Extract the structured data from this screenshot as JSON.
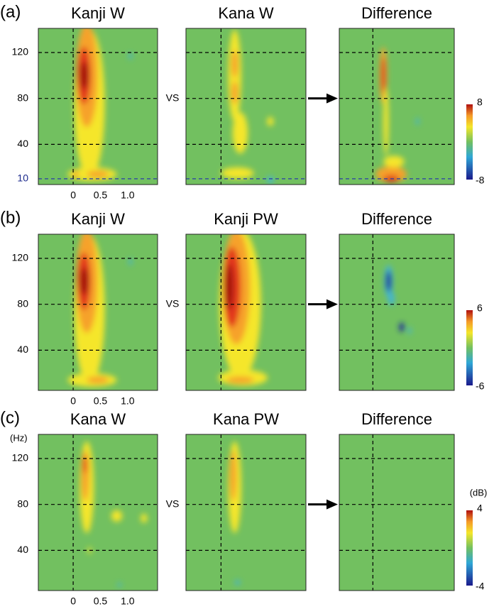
{
  "rows": [
    {
      "label": "(a)",
      "titles": [
        "Kanji W",
        "Kana W",
        "Difference"
      ],
      "vs": "VS",
      "yticks": [
        10,
        40,
        80,
        120
      ],
      "ytick_colors": [
        "#1c2a8c",
        "#000000",
        "#000000",
        "#000000"
      ],
      "xticks": [
        0,
        0.5,
        {
          "value": 1,
          "label": "1.0"
        }
      ],
      "colorbar": [
        8,
        -8
      ]
    },
    {
      "label": "(b)",
      "titles": [
        "Kanji W",
        "Kanji PW",
        "Difference"
      ],
      "vs": "VS",
      "yticks": [
        40,
        80,
        120
      ],
      "ytick_colors": [
        "#000000",
        "#000000",
        "#000000"
      ],
      "xticks": [
        0,
        0.5,
        {
          "value": 1,
          "label": "1.0"
        }
      ],
      "colorbar": [
        6,
        -6
      ]
    },
    {
      "label": "(c)",
      "titles": [
        "Kana W",
        "Kana PW",
        "Difference"
      ],
      "vs": "VS",
      "y_unit": "(Hz)",
      "yticks": [
        40,
        80,
        120
      ],
      "ytick_colors": [
        "#000000",
        "#000000",
        "#000000"
      ],
      "xticks": [
        0,
        0.5,
        {
          "value": 1,
          "label": "1.0"
        }
      ],
      "colorbar": [
        4,
        -4
      ],
      "colorbar_unit": "(dB)"
    }
  ]
}
